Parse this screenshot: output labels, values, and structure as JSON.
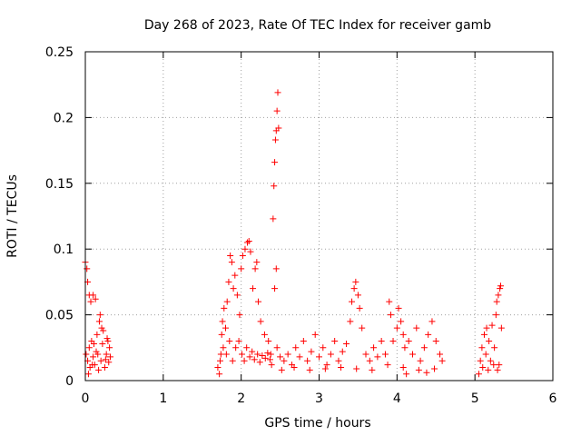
{
  "chart_data": {
    "type": "scatter",
    "title": "Day 268 of 2023, Rate Of TEC Index for receiver gamb",
    "xlabel": "GPS time / hours",
    "ylabel": "ROTI / TECUs",
    "xlim": [
      0,
      6
    ],
    "ylim": [
      0,
      0.25
    ],
    "xticks": [
      0,
      1,
      2,
      3,
      4,
      5,
      6
    ],
    "yticks": [
      0,
      0.05,
      0.1,
      0.15,
      0.2,
      0.25
    ],
    "xtick_labels": [
      "0",
      "1",
      "2",
      "3",
      "4",
      "5",
      "6"
    ],
    "ytick_labels": [
      "0",
      "0.05",
      "0.1",
      "0.15",
      "0.2",
      "0.25"
    ],
    "grid": true,
    "grid_style": "dotted",
    "marker": "+",
    "color": "#ff0000",
    "series": [
      {
        "name": "ROTI",
        "points": [
          [
            0.0,
            0.09
          ],
          [
            0.02,
            0.085
          ],
          [
            0.03,
            0.075
          ],
          [
            0.05,
            0.065
          ],
          [
            0.07,
            0.06
          ],
          [
            0.1,
            0.065
          ],
          [
            0.13,
            0.062
          ],
          [
            0.01,
            0.02
          ],
          [
            0.03,
            0.015
          ],
          [
            0.05,
            0.025
          ],
          [
            0.06,
            0.01
          ],
          [
            0.08,
            0.03
          ],
          [
            0.1,
            0.018
          ],
          [
            0.12,
            0.012
          ],
          [
            0.14,
            0.022
          ],
          [
            0.15,
            0.035
          ],
          [
            0.17,
            0.008
          ],
          [
            0.18,
            0.045
          ],
          [
            0.2,
            0.015
          ],
          [
            0.22,
            0.028
          ],
          [
            0.23,
            0.038
          ],
          [
            0.25,
            0.01
          ],
          [
            0.27,
            0.02
          ],
          [
            0.28,
            0.032
          ],
          [
            0.3,
            0.014
          ],
          [
            0.31,
            0.025
          ],
          [
            0.19,
            0.05
          ],
          [
            0.21,
            0.04
          ],
          [
            0.04,
            0.005
          ],
          [
            0.09,
            0.012
          ],
          [
            0.16,
            0.02
          ],
          [
            0.26,
            0.016
          ],
          [
            0.29,
            0.03
          ],
          [
            0.32,
            0.018
          ],
          [
            0.11,
            0.028
          ],
          [
            1.7,
            0.01
          ],
          [
            1.72,
            0.005
          ],
          [
            1.74,
            0.02
          ],
          [
            1.75,
            0.035
          ],
          [
            1.76,
            0.045
          ],
          [
            1.78,
            0.055
          ],
          [
            1.8,
            0.04
          ],
          [
            1.82,
            0.06
          ],
          [
            1.84,
            0.075
          ],
          [
            1.86,
            0.095
          ],
          [
            1.88,
            0.09
          ],
          [
            1.9,
            0.07
          ],
          [
            1.92,
            0.08
          ],
          [
            1.95,
            0.065
          ],
          [
            1.98,
            0.05
          ],
          [
            2.0,
            0.085
          ],
          [
            2.02,
            0.095
          ],
          [
            2.05,
            0.1
          ],
          [
            2.08,
            0.105
          ],
          [
            2.1,
            0.106
          ],
          [
            2.12,
            0.098
          ],
          [
            2.15,
            0.07
          ],
          [
            2.18,
            0.085
          ],
          [
            2.2,
            0.09
          ],
          [
            2.22,
            0.06
          ],
          [
            2.25,
            0.045
          ],
          [
            2.3,
            0.035
          ],
          [
            2.35,
            0.03
          ],
          [
            1.73,
            0.015
          ],
          [
            1.77,
            0.025
          ],
          [
            1.81,
            0.02
          ],
          [
            1.85,
            0.03
          ],
          [
            1.89,
            0.015
          ],
          [
            1.93,
            0.025
          ],
          [
            1.97,
            0.03
          ],
          [
            2.01,
            0.02
          ],
          [
            2.04,
            0.015
          ],
          [
            2.07,
            0.025
          ],
          [
            2.11,
            0.018
          ],
          [
            2.14,
            0.022
          ],
          [
            2.17,
            0.016
          ],
          [
            2.21,
            0.02
          ],
          [
            2.24,
            0.014
          ],
          [
            2.27,
            0.019
          ],
          [
            2.31,
            0.017
          ],
          [
            2.34,
            0.021
          ],
          [
            2.37,
            0.016
          ],
          [
            2.38,
            0.02
          ],
          [
            2.39,
            0.012
          ],
          [
            2.41,
            0.123
          ],
          [
            2.42,
            0.148
          ],
          [
            2.43,
            0.166
          ],
          [
            2.44,
            0.183
          ],
          [
            2.45,
            0.19
          ],
          [
            2.46,
            0.205
          ],
          [
            2.47,
            0.219
          ],
          [
            2.48,
            0.192
          ],
          [
            2.45,
            0.085
          ],
          [
            2.43,
            0.07
          ],
          [
            2.46,
            0.025
          ],
          [
            2.5,
            0.018
          ],
          [
            2.55,
            0.015
          ],
          [
            2.6,
            0.02
          ],
          [
            2.65,
            0.012
          ],
          [
            2.7,
            0.025
          ],
          [
            2.75,
            0.018
          ],
          [
            2.8,
            0.03
          ],
          [
            2.85,
            0.015
          ],
          [
            2.9,
            0.022
          ],
          [
            2.95,
            0.035
          ],
          [
            3.0,
            0.018
          ],
          [
            3.05,
            0.025
          ],
          [
            3.1,
            0.012
          ],
          [
            3.15,
            0.02
          ],
          [
            3.2,
            0.03
          ],
          [
            3.25,
            0.015
          ],
          [
            3.3,
            0.022
          ],
          [
            3.35,
            0.028
          ],
          [
            3.4,
            0.045
          ],
          [
            3.42,
            0.06
          ],
          [
            3.45,
            0.07
          ],
          [
            3.47,
            0.075
          ],
          [
            3.5,
            0.065
          ],
          [
            3.52,
            0.055
          ],
          [
            3.55,
            0.04
          ],
          [
            3.6,
            0.02
          ],
          [
            3.65,
            0.015
          ],
          [
            3.7,
            0.025
          ],
          [
            3.75,
            0.018
          ],
          [
            3.8,
            0.03
          ],
          [
            3.85,
            0.02
          ],
          [
            3.9,
            0.06
          ],
          [
            3.92,
            0.05
          ],
          [
            3.95,
            0.03
          ],
          [
            4.0,
            0.04
          ],
          [
            4.02,
            0.055
          ],
          [
            4.05,
            0.045
          ],
          [
            4.08,
            0.035
          ],
          [
            4.1,
            0.025
          ],
          [
            4.15,
            0.03
          ],
          [
            4.2,
            0.02
          ],
          [
            4.25,
            0.04
          ],
          [
            4.3,
            0.015
          ],
          [
            4.35,
            0.025
          ],
          [
            4.4,
            0.035
          ],
          [
            4.45,
            0.045
          ],
          [
            4.5,
            0.03
          ],
          [
            4.55,
            0.02
          ],
          [
            4.58,
            0.015
          ],
          [
            2.52,
            0.008
          ],
          [
            2.68,
            0.01
          ],
          [
            2.88,
            0.008
          ],
          [
            3.08,
            0.009
          ],
          [
            3.28,
            0.01
          ],
          [
            3.48,
            0.009
          ],
          [
            3.68,
            0.008
          ],
          [
            3.88,
            0.012
          ],
          [
            4.08,
            0.01
          ],
          [
            4.28,
            0.008
          ],
          [
            4.48,
            0.009
          ],
          [
            4.12,
            0.005
          ],
          [
            4.38,
            0.006
          ],
          [
            5.05,
            0.005
          ],
          [
            5.07,
            0.015
          ],
          [
            5.09,
            0.025
          ],
          [
            5.1,
            0.01
          ],
          [
            5.12,
            0.035
          ],
          [
            5.14,
            0.02
          ],
          [
            5.15,
            0.04
          ],
          [
            5.17,
            0.008
          ],
          [
            5.18,
            0.03
          ],
          [
            5.2,
            0.015
          ],
          [
            5.22,
            0.042
          ],
          [
            5.24,
            0.012
          ],
          [
            5.25,
            0.025
          ],
          [
            5.27,
            0.05
          ],
          [
            5.28,
            0.06
          ],
          [
            5.3,
            0.065
          ],
          [
            5.32,
            0.07
          ],
          [
            5.33,
            0.072
          ],
          [
            5.34,
            0.04
          ],
          [
            5.31,
            0.012
          ],
          [
            5.29,
            0.008
          ]
        ]
      }
    ]
  }
}
